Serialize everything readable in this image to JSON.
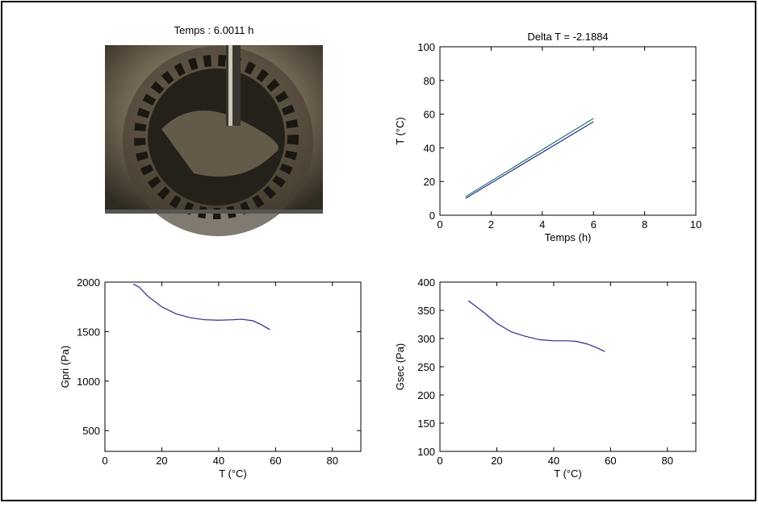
{
  "image_panel": {
    "title": "Temps : 6.0011 h"
  },
  "chart_data": [
    {
      "type": "line",
      "title": "Delta T = -2.1884",
      "xlabel": "Temps (h)",
      "ylabel": "T (°C)",
      "x": [
        1,
        6
      ],
      "series": [
        {
          "color": "#1f7a6e",
          "values": [
            11,
            57.5
          ]
        },
        {
          "color": "#2b2b8f",
          "values": [
            10,
            55.5
          ]
        }
      ],
      "xlim": [
        0,
        10
      ],
      "ylim": [
        0,
        100
      ],
      "xticks": [
        0,
        2,
        4,
        6,
        8,
        10
      ],
      "yticks": [
        0,
        20,
        40,
        60,
        80,
        100
      ]
    },
    {
      "type": "line",
      "xlabel": "T (°C)",
      "ylabel": "Gpri (Pa)",
      "x": [
        10,
        12,
        15,
        20,
        25,
        30,
        35,
        40,
        45,
        48,
        52,
        55,
        58
      ],
      "series": [
        {
          "color": "#2b2b8f",
          "values": [
            1980,
            1950,
            1860,
            1750,
            1680,
            1640,
            1620,
            1615,
            1620,
            1625,
            1610,
            1570,
            1520
          ]
        }
      ],
      "xlim": [
        0,
        90
      ],
      "ylim": [
        290,
        2000
      ],
      "xticks": [
        0,
        20,
        40,
        60,
        80
      ],
      "yticks": [
        500,
        1000,
        1500,
        2000
      ]
    },
    {
      "type": "line",
      "xlabel": "T (°C)",
      "ylabel": "Gsec (Pa)",
      "x": [
        10,
        15,
        20,
        25,
        30,
        35,
        40,
        45,
        48,
        52,
        55,
        58
      ],
      "series": [
        {
          "color": "#2b2b8f",
          "values": [
            367,
            348,
            327,
            312,
            304,
            298,
            296,
            296,
            295,
            290,
            284,
            277
          ]
        }
      ],
      "xlim": [
        0,
        90
      ],
      "ylim": [
        100,
        400
      ],
      "xticks": [
        0,
        20,
        40,
        60,
        80
      ],
      "yticks": [
        100,
        150,
        200,
        250,
        300,
        350,
        400
      ]
    }
  ]
}
